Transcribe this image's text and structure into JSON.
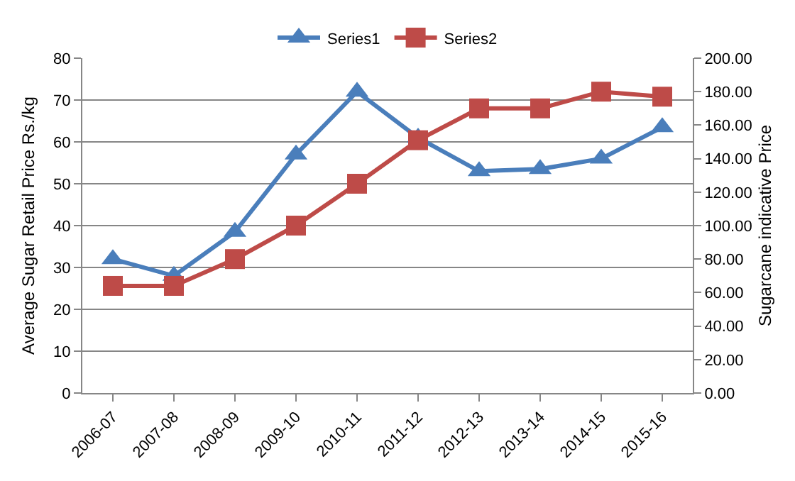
{
  "chart_data": {
    "type": "line",
    "ylabel": "Average Sugar Retail Price Rs./kg",
    "y2label": "Sugarcane indicative Price",
    "categories": [
      "2006-07",
      "2007-08",
      "2008-09",
      "2009-10",
      "2010-11",
      "2011-12",
      "2012-13",
      "2013-14",
      "2014-15",
      "2015-16"
    ],
    "series": [
      {
        "name": "Series1",
        "color": "#4a7ebb",
        "marker": "triangle",
        "values": [
          32,
          28,
          38.5,
          57,
          72,
          61,
          53,
          53.5,
          56,
          63.5
        ]
      },
      {
        "name": "Series2",
        "color": "#be4b48",
        "marker": "square",
        "axis": "y2",
        "values": [
          64,
          64,
          80,
          100,
          125,
          151,
          170,
          170,
          180,
          177
        ]
      }
    ],
    "ylim": [
      0,
      80
    ],
    "yticks": [
      0,
      10,
      20,
      30,
      40,
      50,
      60,
      70,
      80
    ],
    "y2lim": [
      0,
      200
    ],
    "y2ticks": [
      {
        "value": 0,
        "label": "0.00"
      },
      {
        "value": 20,
        "label": "20.00"
      },
      {
        "value": 40,
        "label": "40.00"
      },
      {
        "value": 60,
        "label": "60.00"
      },
      {
        "value": 80,
        "label": "80.00"
      },
      {
        "value": 100,
        "label": "100.00"
      },
      {
        "value": 120,
        "label": "120.00"
      },
      {
        "value": 140,
        "label": "140.00"
      },
      {
        "value": 160,
        "label": "160.00"
      },
      {
        "value": 180,
        "label": "180.00"
      },
      {
        "value": 200,
        "label": "200.00"
      }
    ],
    "grid": "y",
    "legend": "top",
    "line_style": "solid"
  }
}
